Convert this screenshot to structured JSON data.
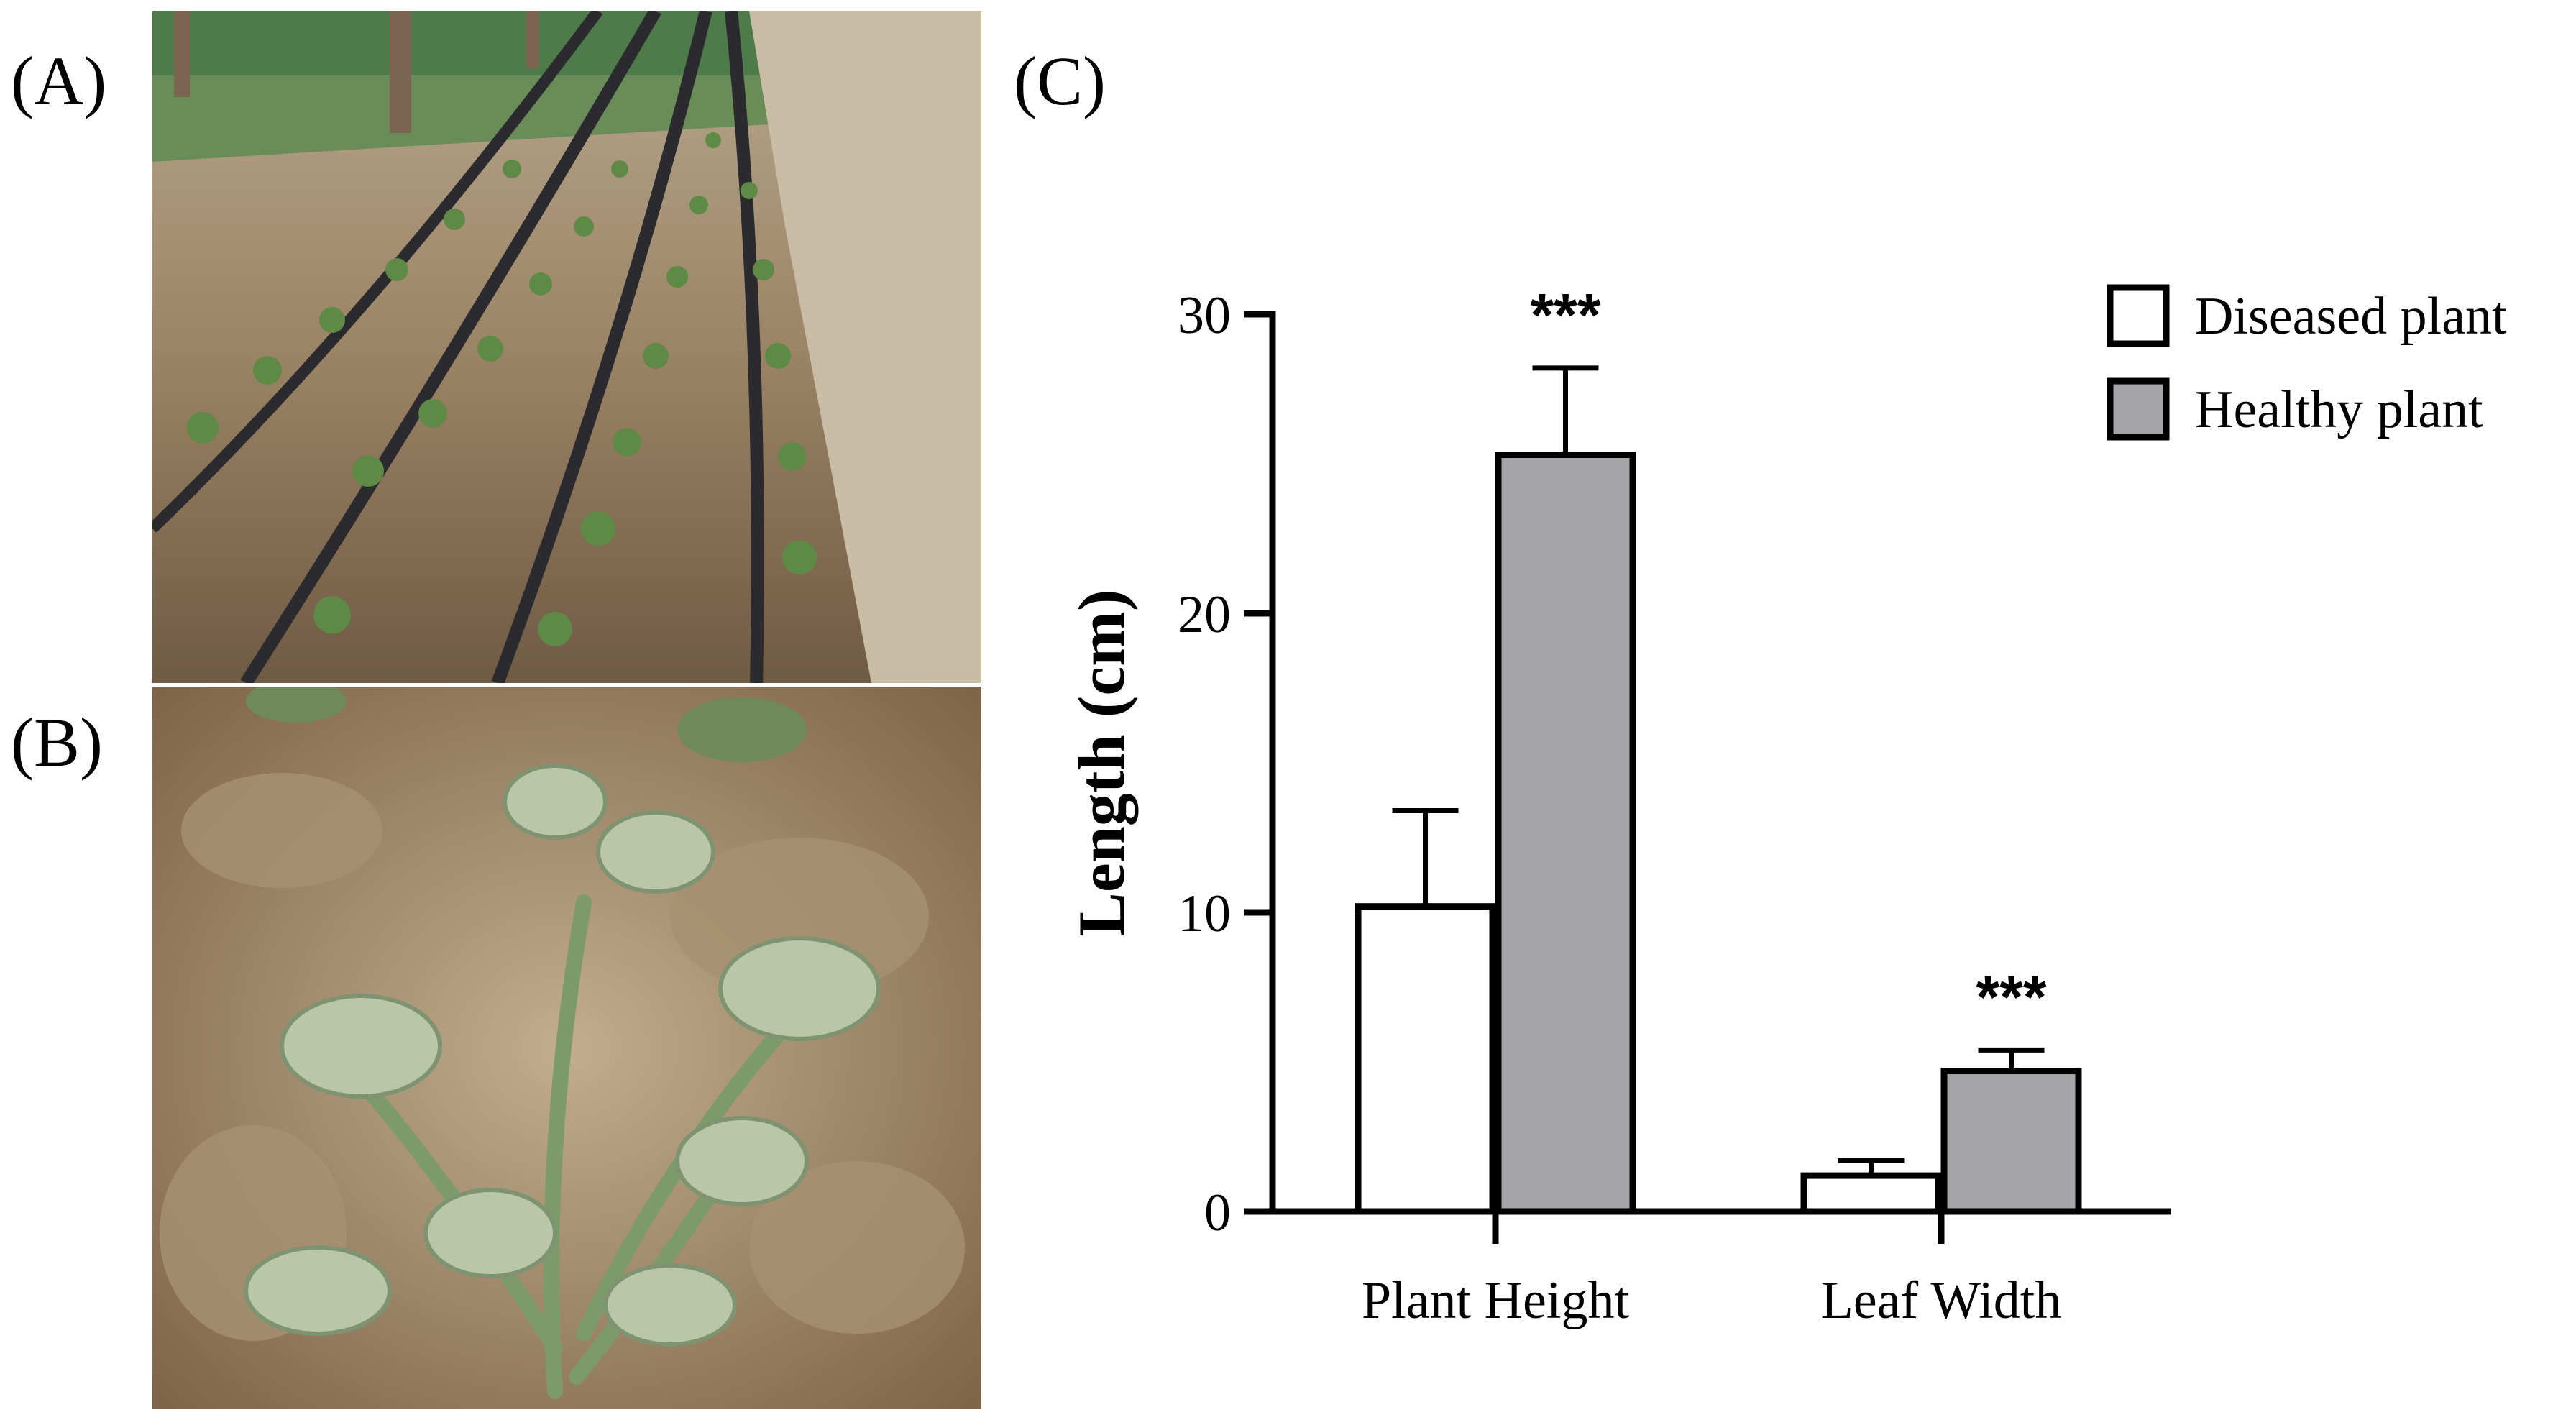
{
  "panels": {
    "a": {
      "label": "(A)"
    },
    "b": {
      "label": "(B)"
    },
    "c": {
      "label": "(C)"
    }
  },
  "chart_data": {
    "type": "bar",
    "categories": [
      "Plant Height",
      "Leaf Width"
    ],
    "series": [
      {
        "name": "Diseased plant",
        "values": [
          10.2,
          1.2
        ],
        "errors": [
          3.2,
          0.5
        ],
        "color": "#ffffff"
      },
      {
        "name": "Healthy plant",
        "values": [
          25.3,
          4.7
        ],
        "errors": [
          2.9,
          0.7
        ],
        "color": "#a4a4a8"
      }
    ],
    "significance": [
      "***",
      "***"
    ],
    "title": "",
    "xlabel": "",
    "ylabel": "Length (cm)",
    "ylim": [
      0,
      30
    ],
    "yticks": [
      0,
      10,
      20,
      30
    ],
    "grid": false,
    "legend_position": "top-right"
  }
}
